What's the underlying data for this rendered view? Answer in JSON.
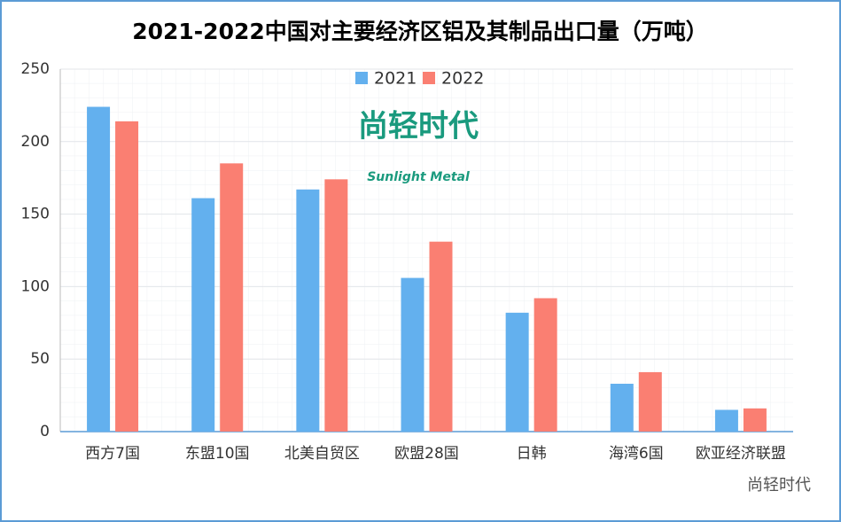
{
  "chart_data": {
    "type": "bar",
    "title": "2021-2022中国对主要经济区铝及其制品出口量（万吨）",
    "categories": [
      "西方7国",
      "东盟10国",
      "北美自贸区",
      "欧盟28国",
      "日韩",
      "海湾6国",
      "欧亚经济联盟"
    ],
    "series": [
      {
        "name": "2021",
        "color": "#63b0ee",
        "values": [
          224,
          161,
          167,
          106,
          82,
          33,
          15
        ]
      },
      {
        "name": "2022",
        "color": "#fa7f72",
        "values": [
          214,
          185,
          174,
          131,
          92,
          41,
          16
        ]
      }
    ],
    "ylim": [
      0,
      250
    ],
    "yticks": [
      0,
      50,
      100,
      150,
      200,
      250
    ],
    "grid": true,
    "legend": "top",
    "logo": {
      "cn": "尚轻时代",
      "en": "Sunlight Metal"
    },
    "watermark": "尚轻时代"
  }
}
